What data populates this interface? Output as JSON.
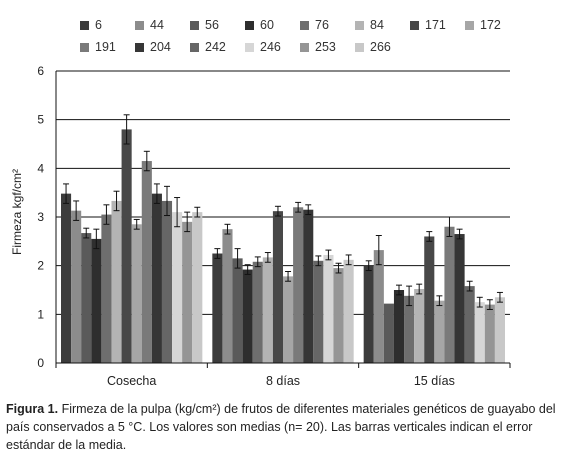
{
  "chart_data": {
    "type": "bar",
    "ylabel": "Firmeza kgf/cm²",
    "xlabel": "",
    "ylim": [
      0,
      6
    ],
    "yticks": [
      0,
      1,
      2,
      3,
      4,
      5,
      6
    ],
    "grid": true,
    "legend_position": "top",
    "categories": [
      "Cosecha",
      "8 días",
      "15 días"
    ],
    "series": [
      {
        "name": "6",
        "color": "#3c3c3c",
        "values": [
          3.48,
          2.25,
          2.0
        ],
        "errors": [
          0.2,
          0.1,
          0.1
        ]
      },
      {
        "name": "44",
        "color": "#8c8c8c",
        "values": [
          3.13,
          2.75,
          2.32
        ],
        "errors": [
          0.2,
          0.1,
          0.3
        ]
      },
      {
        "name": "56",
        "color": "#5a5a5a",
        "values": [
          2.67,
          2.15,
          1.22
        ],
        "errors": [
          0.1,
          0.2,
          0.0
        ]
      },
      {
        "name": "60",
        "color": "#2e2e2e",
        "values": [
          2.55,
          1.92,
          1.5
        ],
        "errors": [
          0.2,
          0.1,
          0.1
        ]
      },
      {
        "name": "76",
        "color": "#6e6e6e",
        "values": [
          3.05,
          2.08,
          1.38
        ],
        "errors": [
          0.2,
          0.1,
          0.2
        ]
      },
      {
        "name": "84",
        "color": "#b4b4b4",
        "values": [
          3.33,
          2.17,
          1.52
        ],
        "errors": [
          0.2,
          0.1,
          0.1
        ]
      },
      {
        "name": "171",
        "color": "#484848",
        "values": [
          4.8,
          3.12,
          2.6
        ],
        "errors": [
          0.3,
          0.1,
          0.1
        ]
      },
      {
        "name": "172",
        "color": "#a6a6a6",
        "values": [
          2.85,
          1.78,
          1.28
        ],
        "errors": [
          0.1,
          0.1,
          0.1
        ]
      },
      {
        "name": "191",
        "color": "#7a7a7a",
        "values": [
          4.15,
          3.2,
          2.8
        ],
        "errors": [
          0.2,
          0.1,
          0.2
        ]
      },
      {
        "name": "204",
        "color": "#363636",
        "values": [
          3.48,
          3.15,
          2.65
        ],
        "errors": [
          0.2,
          0.1,
          0.1
        ]
      },
      {
        "name": "242",
        "color": "#666666",
        "values": [
          3.33,
          2.1,
          1.58
        ],
        "errors": [
          0.3,
          0.1,
          0.1
        ]
      },
      {
        "name": "246",
        "color": "#d6d6d6",
        "values": [
          3.1,
          2.22,
          1.25
        ],
        "errors": [
          0.3,
          0.1,
          0.1
        ]
      },
      {
        "name": "253",
        "color": "#959595",
        "values": [
          2.9,
          1.95,
          1.2
        ],
        "errors": [
          0.2,
          0.1,
          0.1
        ]
      },
      {
        "name": "266",
        "color": "#c8c8c8",
        "values": [
          3.1,
          2.12,
          1.35
        ],
        "errors": [
          0.1,
          0.1,
          0.1
        ]
      }
    ]
  },
  "caption": {
    "label": "Figura 1.",
    "text": " Firmeza de la pulpa (kg/cm²) de frutos de diferentes materiales genéticos de guayabo del país conservados a 5 °C. Los valores son medias (n= 20). Las barras verticales indican el error estándar de la media."
  }
}
